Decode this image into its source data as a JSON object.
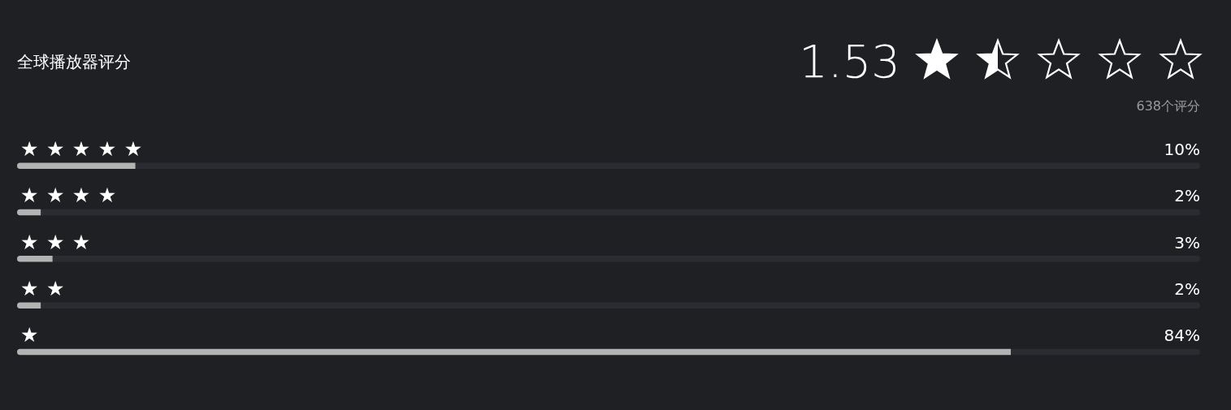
{
  "chart_data": {
    "type": "bar",
    "orientation": "horizontal",
    "title": "全球播放器评分",
    "categories": [
      "★★★★★",
      "★★★★",
      "★★★",
      "★★",
      "★"
    ],
    "values": [
      10,
      2,
      3,
      2,
      84
    ],
    "value_labels": [
      "10%",
      "2%",
      "3%",
      "2%",
      "84%"
    ],
    "color": "#b3b3b3",
    "xlim": [
      0,
      100
    ],
    "tick_labels": false,
    "annotations": [
      "1.53",
      "638个评分"
    ]
  }
}
